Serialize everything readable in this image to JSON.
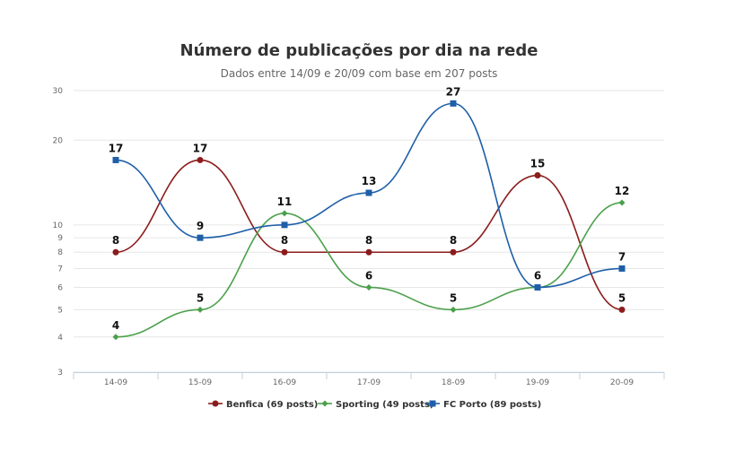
{
  "chart_data": {
    "type": "line",
    "title": "Número de publicações por dia na rede",
    "subtitle": "Dados entre 14/09 e 20/09 com base em 207 posts",
    "xlabel": "",
    "ylabel": "",
    "scale": "log",
    "ylim": [
      3,
      30
    ],
    "yticks": [
      3,
      4,
      5,
      6,
      7,
      8,
      9,
      10,
      20,
      30
    ],
    "grid": true,
    "legend": "bottom-center",
    "categories": [
      "14-09",
      "15-09",
      "16-09",
      "17-09",
      "18-09",
      "19-09",
      "20-09"
    ],
    "series": [
      {
        "name": "Benfica (69 posts)",
        "color": "#8b1c1c",
        "marker": "circle",
        "values": [
          8,
          17,
          8,
          8,
          8,
          15,
          5
        ]
      },
      {
        "name": "Sporting (49 posts)",
        "color": "#4aa04a",
        "marker": "diamond",
        "values": [
          4,
          5,
          11,
          6,
          5,
          6,
          12
        ]
      },
      {
        "name": "FC Porto (89 posts)",
        "color": "#1f5fa8",
        "marker": "square",
        "values": [
          17,
          9,
          10,
          13,
          27,
          6,
          7
        ]
      }
    ],
    "data_labels": [
      {
        "series": 2,
        "index": 0,
        "text": "17"
      },
      {
        "series": 0,
        "index": 0,
        "text": "8"
      },
      {
        "series": 1,
        "index": 0,
        "text": "4"
      },
      {
        "series": 0,
        "index": 1,
        "text": "17"
      },
      {
        "series": 2,
        "index": 1,
        "text": "9"
      },
      {
        "series": 1,
        "index": 1,
        "text": "5"
      },
      {
        "series": 1,
        "index": 2,
        "text": "11"
      },
      {
        "series": 0,
        "index": 2,
        "text": "8"
      },
      {
        "series": 2,
        "index": 3,
        "text": "13"
      },
      {
        "series": 0,
        "index": 3,
        "text": "8"
      },
      {
        "series": 1,
        "index": 3,
        "text": "6"
      },
      {
        "series": 2,
        "index": 4,
        "text": "27"
      },
      {
        "series": 0,
        "index": 4,
        "text": "8"
      },
      {
        "series": 1,
        "index": 4,
        "text": "5"
      },
      {
        "series": 0,
        "index": 5,
        "text": "15"
      },
      {
        "series": 1,
        "index": 5,
        "text": "6"
      },
      {
        "series": 1,
        "index": 6,
        "text": "12"
      },
      {
        "series": 2,
        "index": 6,
        "text": "7"
      },
      {
        "series": 0,
        "index": 6,
        "text": "5"
      }
    ]
  }
}
